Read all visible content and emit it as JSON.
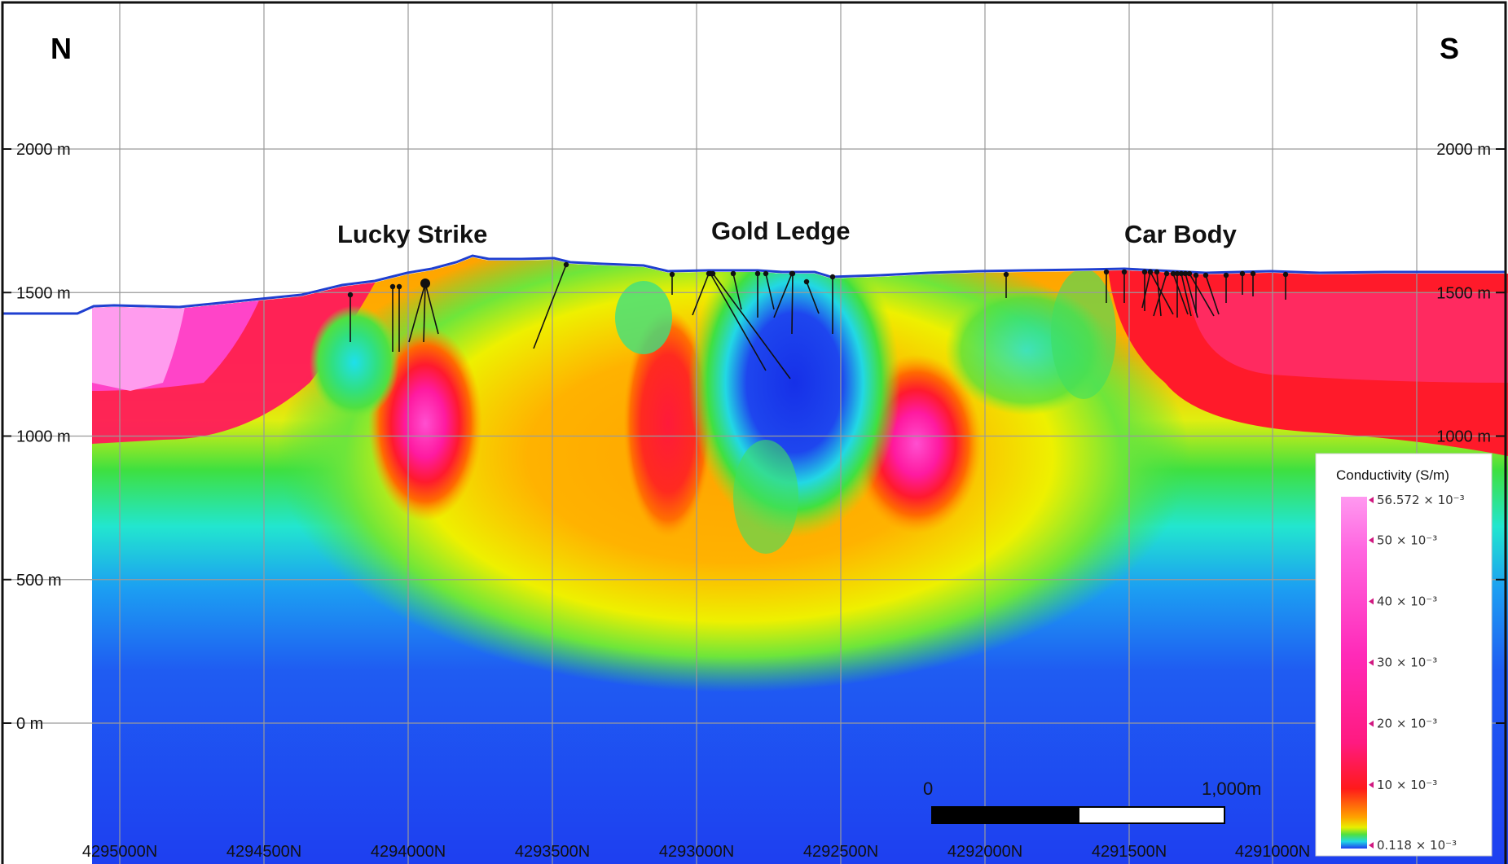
{
  "compass": {
    "left": "N",
    "right": "S"
  },
  "elevation_labels": [
    {
      "value": 2000,
      "text": "2000 m"
    },
    {
      "value": 1500,
      "text": "1500 m"
    },
    {
      "value": 1000,
      "text": "1000 m"
    },
    {
      "value": 500,
      "text": "500 m"
    },
    {
      "value": 0,
      "text": "0 m"
    }
  ],
  "northing_labels": [
    "4295000N",
    "4294500N",
    "4294000N",
    "4293500N",
    "4293000N",
    "4292500N",
    "4292000N",
    "4291500N",
    "4291000N"
  ],
  "deposits": [
    {
      "id": "lucky-strike",
      "label": "Lucky Strike"
    },
    {
      "id": "gold-ledge",
      "label": "Gold Ledge"
    },
    {
      "id": "car-body",
      "label": "Car Body"
    }
  ],
  "scale_bar": {
    "start_label": "0",
    "end_label": "1,000m"
  },
  "legend": {
    "title": "Conductivity (S/m)",
    "ticks": [
      {
        "text": "56.572 × 10⁻³",
        "value": 56.572
      },
      {
        "text": "50 × 10⁻³",
        "value": 50
      },
      {
        "text": "40 × 10⁻³",
        "value": 40
      },
      {
        "text": "30 × 10⁻³",
        "value": 30
      },
      {
        "text": "20 × 10⁻³",
        "value": 20
      },
      {
        "text": "10 × 10⁻³",
        "value": 10
      },
      {
        "text": "0.118 × 10⁻³",
        "value": 0.118
      }
    ]
  },
  "colors": {
    "frame": "#111111",
    "terrain_line": "#1f3fd0",
    "grid": "#9a9a9a",
    "scale_black": "#000000",
    "scale_white": "#ffffff"
  }
}
